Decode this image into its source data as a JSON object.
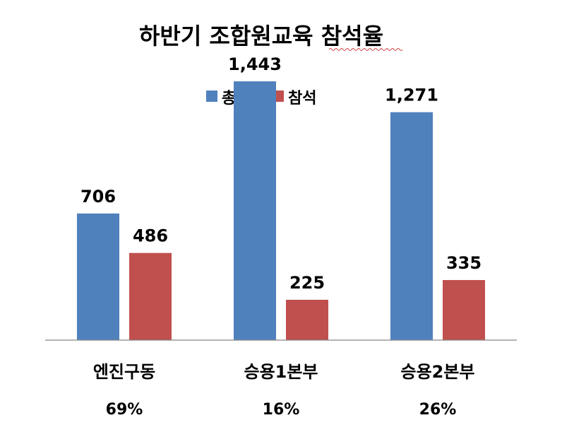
{
  "chart_data": {
    "type": "bar",
    "title": "하반기 조합원교육 참석율",
    "categories": [
      "엔진구동",
      "승용1본부",
      "승용2본부"
    ],
    "series": [
      {
        "name": "총원",
        "color": "#4F81BD",
        "values": [
          706,
          1443,
          1271
        ],
        "labels": [
          "706",
          "1,443",
          "1,271"
        ]
      },
      {
        "name": "참석",
        "color": "#C0504D",
        "values": [
          486,
          225,
          335
        ],
        "labels": [
          "486",
          "225",
          "335"
        ]
      }
    ],
    "rates": [
      "69%",
      "16%",
      "26%"
    ],
    "ylim": [
      0,
      1660
    ],
    "legend_position": "top-center",
    "grid": false
  }
}
